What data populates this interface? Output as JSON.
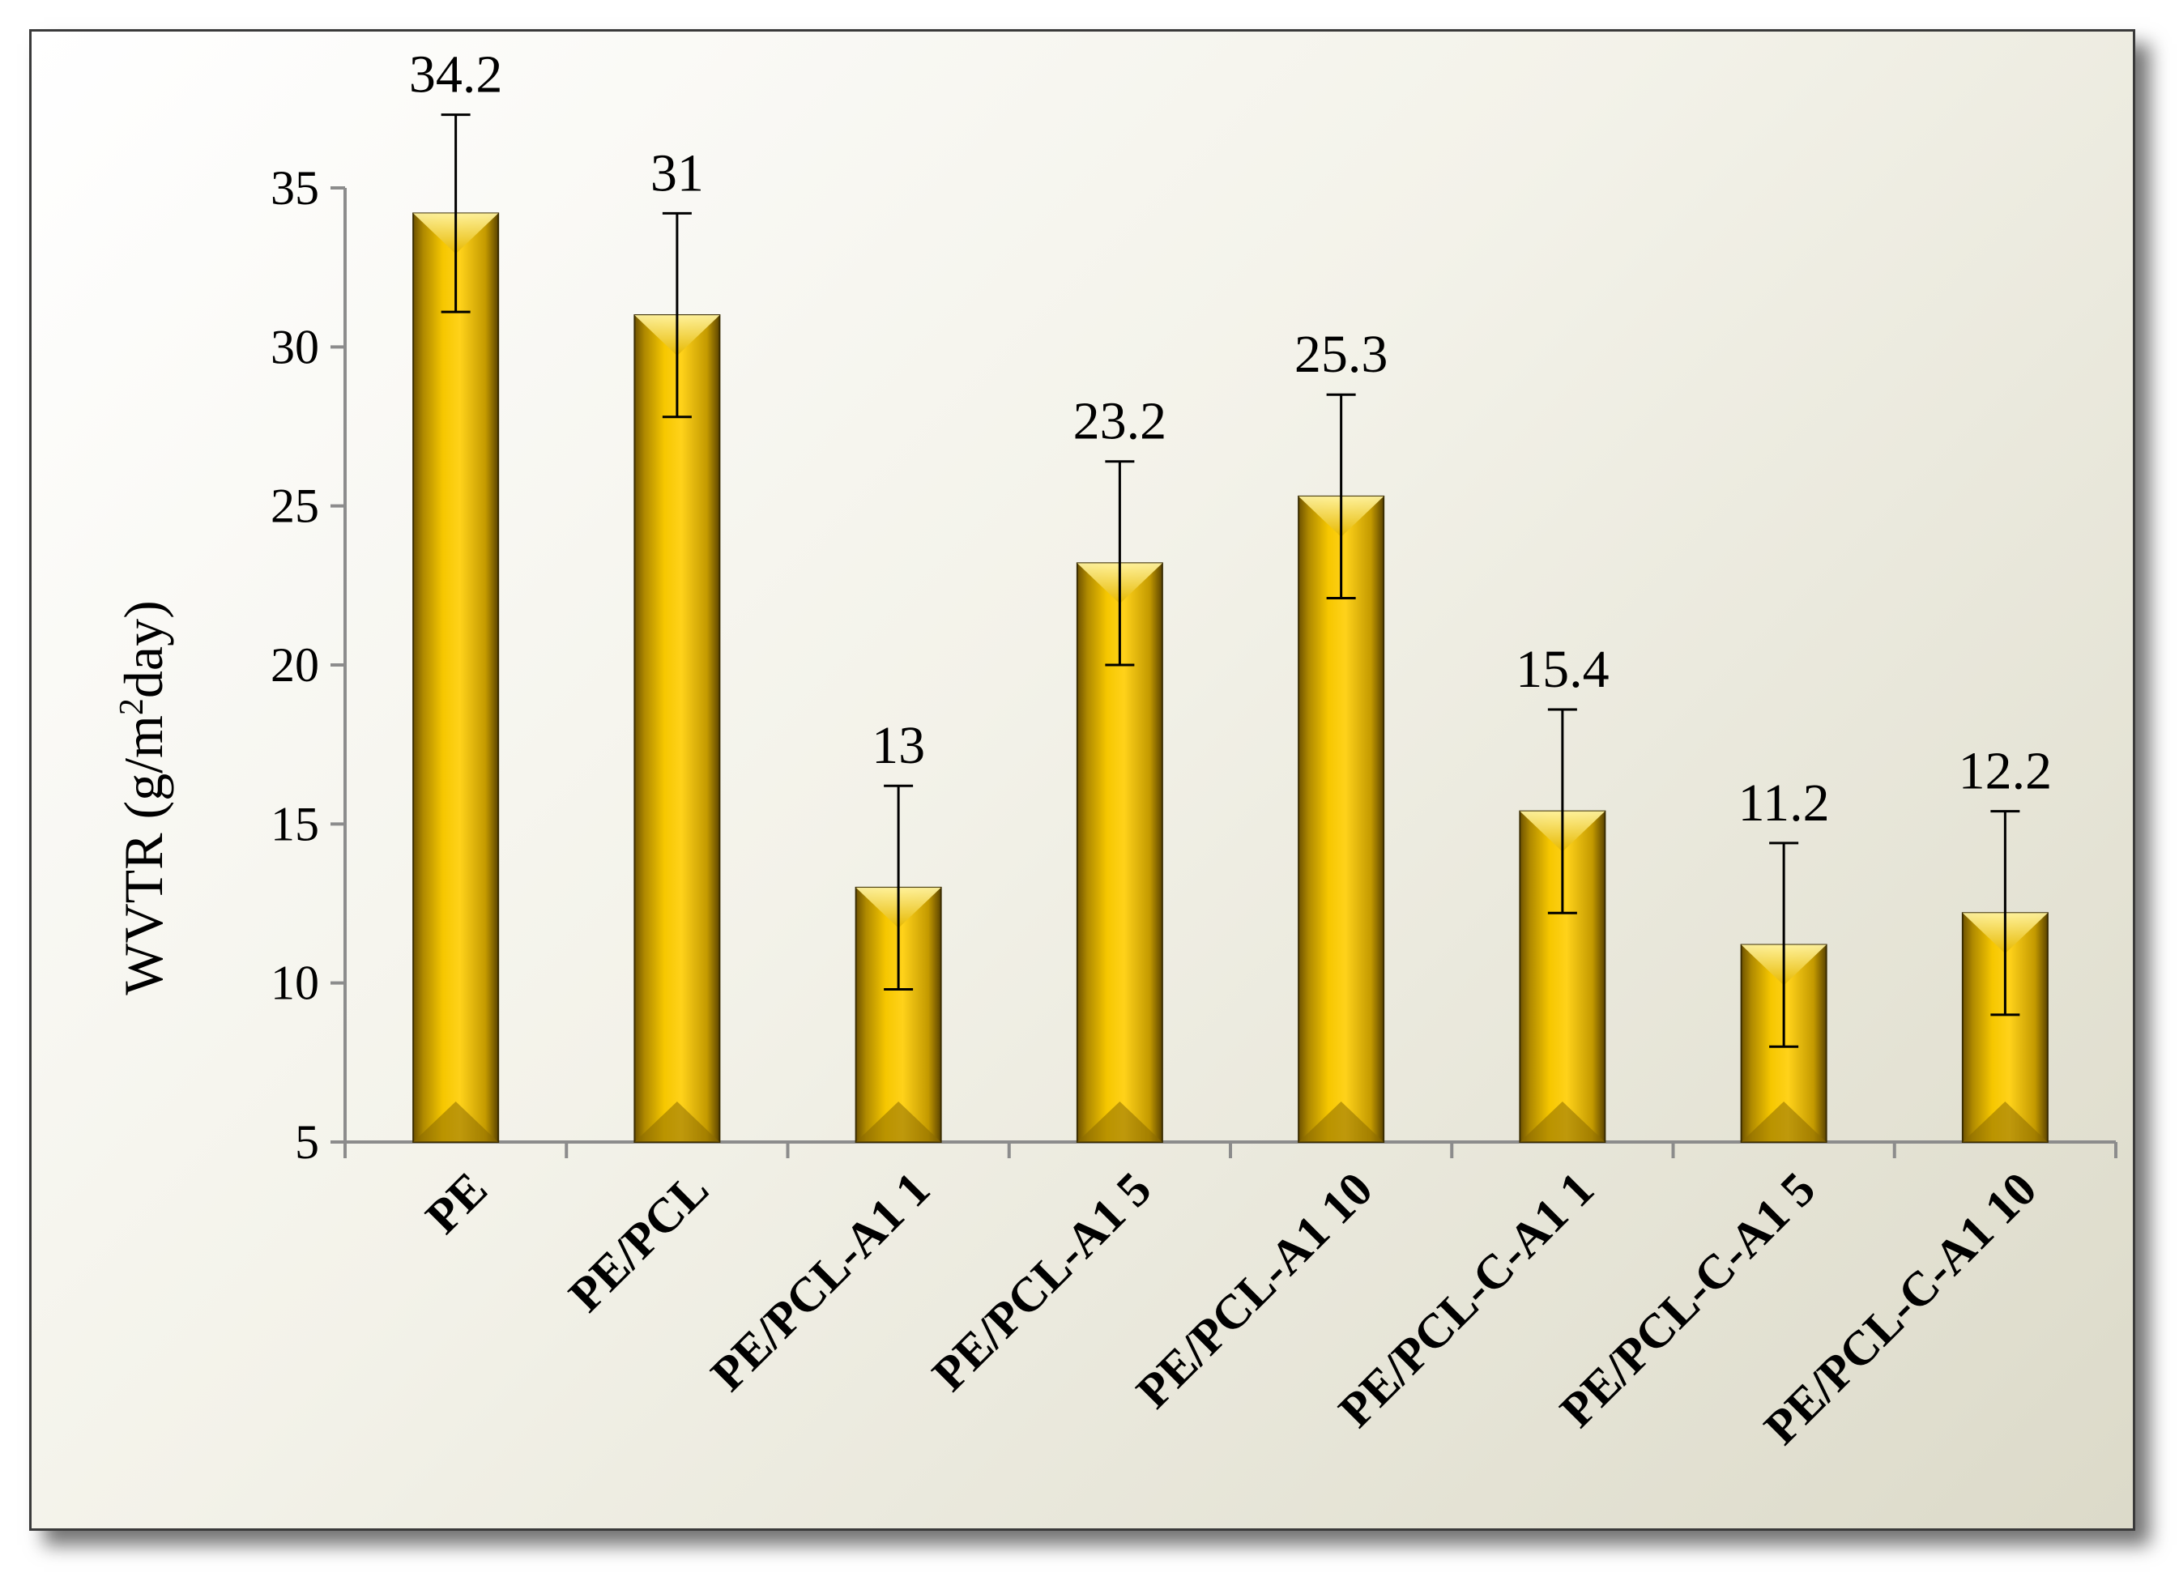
{
  "chart_data": {
    "type": "bar",
    "title": "",
    "xlabel": "",
    "ylabel_main": "WVTR (g/m",
    "ylabel_sup": "2",
    "ylabel_tail": "day)",
    "ylim": [
      5,
      35
    ],
    "yticks": [
      5,
      10,
      15,
      20,
      25,
      30,
      35
    ],
    "categories": [
      "PE",
      "PE/PCL",
      "PE/PCL-A1 1",
      "PE/PCL-A1 5",
      "PE/PCL-A1 10",
      "PE/PCL-C-A1 1",
      "PE/PCL-C-A1 5",
      "PE/PCL-C-A1 10"
    ],
    "values": [
      34.2,
      31,
      13,
      23.2,
      25.3,
      15.4,
      11.2,
      12.2
    ],
    "errors": [
      3.1,
      3.2,
      3.2,
      3.2,
      3.2,
      3.2,
      3.2,
      3.2
    ],
    "data_labels": [
      "34.2",
      "31",
      "13",
      "23.2",
      "25.3",
      "15.4",
      "11.2",
      "12.2"
    ],
    "bar_color": "#f5c400",
    "grid": false,
    "legend": "none"
  }
}
